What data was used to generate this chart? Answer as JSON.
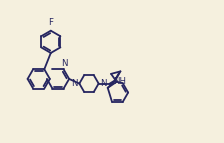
{
  "background_color": "#f5f0de",
  "bond_color": "#252560",
  "label_color": "#252560",
  "line_width": 1.3,
  "font_size": 6.2,
  "figsize": [
    2.24,
    1.43
  ],
  "dpi": 100,
  "xlim": [
    -0.5,
    11.5
  ],
  "ylim": [
    0.0,
    7.0
  ]
}
